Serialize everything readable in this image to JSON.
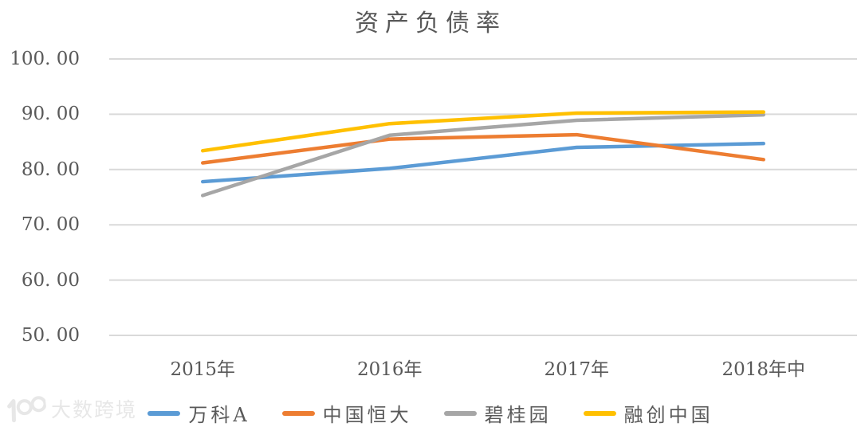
{
  "watermark": {
    "logo_icon": "100-circles-logo",
    "text": "大数跨境"
  },
  "style": {
    "background": "#FFFFFF",
    "grid_color": "#D9D9D9",
    "text_color": "#595959",
    "watermark_color": "#E7E7E7"
  },
  "chart_data": {
    "type": "line",
    "title": "资产负债率",
    "xlabel": "",
    "ylabel": "",
    "categories": [
      "2015年",
      "2016年",
      "2017年",
      "2018年中"
    ],
    "series": [
      {
        "name": "万科A",
        "color": "#5B9BD5",
        "values": [
          77.8,
          80.2,
          84.0,
          84.7
        ]
      },
      {
        "name": "中国恒大",
        "color": "#ED7D31",
        "values": [
          81.2,
          85.5,
          86.3,
          81.8
        ]
      },
      {
        "name": "碧桂园",
        "color": "#A6A6A6",
        "values": [
          75.3,
          86.2,
          88.9,
          89.9
        ]
      },
      {
        "name": "融创中国",
        "color": "#FFC000",
        "values": [
          83.4,
          88.3,
          90.2,
          90.4
        ]
      }
    ],
    "ylim": [
      50,
      100
    ],
    "ytick_step": 10,
    "y_tick_labels": [
      "100. 00",
      "90. 00",
      "80. 00",
      "70. 00",
      "60. 00",
      "50. 00"
    ],
    "grid": true,
    "legend_position": "bottom"
  }
}
